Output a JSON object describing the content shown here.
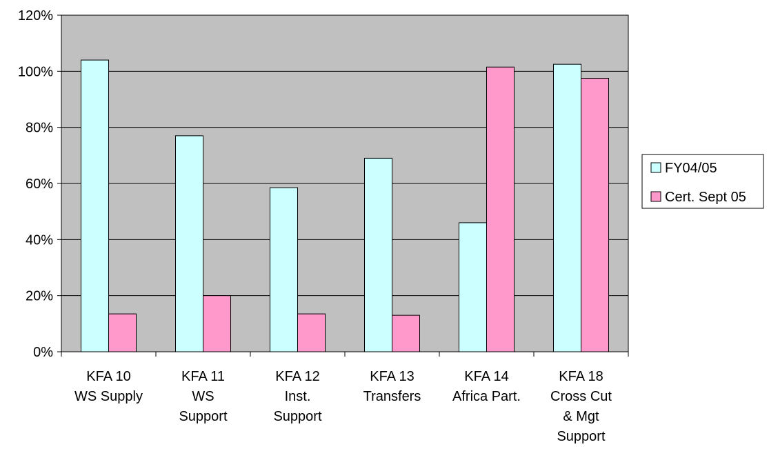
{
  "chart_data": {
    "type": "bar",
    "categories": [
      [
        "KFA 10",
        "WS Supply"
      ],
      [
        "KFA 11",
        "WS",
        "Support"
      ],
      [
        "KFA 12",
        "Inst.",
        "Support"
      ],
      [
        "KFA 13",
        "Transfers"
      ],
      [
        "KFA 14",
        "Africa Part."
      ],
      [
        "KFA 18",
        "Cross Cut",
        "& Mgt",
        "Support"
      ]
    ],
    "series": [
      {
        "name": "FY04/05",
        "color": "#ccffff",
        "values": [
          1.04,
          0.77,
          0.585,
          0.69,
          0.46,
          1.025
        ]
      },
      {
        "name": "Cert. Sept 05",
        "color": "#ff99cc",
        "values": [
          0.135,
          0.2,
          0.135,
          0.13,
          1.015,
          0.975
        ]
      }
    ],
    "y_ticks": [
      "0%",
      "20%",
      "40%",
      "60%",
      "80%",
      "100%",
      "120%"
    ],
    "ylim": [
      0,
      1.2
    ],
    "grid": true,
    "plot_background": "#c0c0c0",
    "legend_position": "right",
    "title": "",
    "xlabel": "",
    "ylabel": ""
  }
}
